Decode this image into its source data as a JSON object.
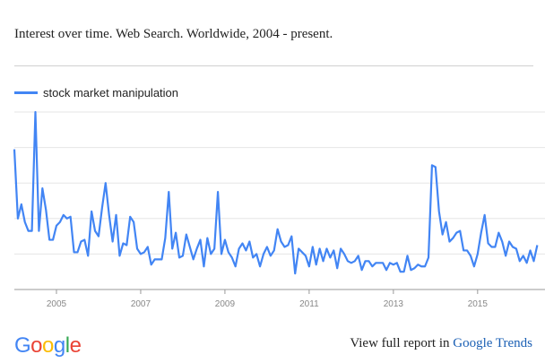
{
  "header": {
    "title": "Interest over time. Web Search. Worldwide, 2004 - present."
  },
  "footer": {
    "logo_text": "Google",
    "logo_letters": [
      "G",
      "o",
      "o",
      "g",
      "l",
      "e"
    ],
    "logo_colors": [
      "#4285f4",
      "#ea4335",
      "#fbbc05",
      "#4285f4",
      "#34a853",
      "#ea4335"
    ],
    "report_prefix": "View full report in",
    "report_link": "Google Trends"
  },
  "colors": {
    "series": "#4285f4",
    "gridline": "#e6e6e6",
    "axis": "#999999",
    "tick_label": "#888888"
  },
  "chart_data": {
    "type": "line",
    "title": "",
    "xlabel": "",
    "ylabel": "",
    "x_start": "2004-01",
    "x_end": "2016-08",
    "xlim": [
      2004.0,
      2016.6
    ],
    "ylim": [
      0,
      100
    ],
    "grid": true,
    "legend_position": "top-left",
    "x_ticks": [
      "2005",
      "2007",
      "2009",
      "2011",
      "2013",
      "2015"
    ],
    "x_tick_values": [
      2005,
      2007,
      2009,
      2011,
      2013,
      2015
    ],
    "series": [
      {
        "name": "stock market manipulation",
        "color": "#4285f4",
        "start_year": 2004,
        "start_month": 1,
        "values": [
          79,
          40,
          48,
          38,
          33,
          33,
          100,
          33,
          57,
          45,
          28,
          28,
          36,
          38,
          42,
          40,
          41,
          21,
          21,
          27,
          28,
          19,
          44,
          33,
          30,
          46,
          60,
          42,
          27,
          42,
          19,
          26,
          25,
          41,
          38,
          23,
          20,
          21,
          24,
          14,
          17,
          17,
          17,
          29,
          55,
          23,
          32,
          18,
          19,
          31,
          24,
          17,
          23,
          28,
          13,
          29,
          20,
          23,
          55,
          20,
          28,
          21,
          18,
          13,
          23,
          26,
          22,
          27,
          18,
          20,
          13,
          20,
          24,
          19,
          22,
          34,
          27,
          24,
          25,
          30,
          9,
          23,
          21,
          19,
          13,
          24,
          14,
          23,
          16,
          23,
          18,
          22,
          12,
          23,
          20,
          16,
          15,
          16,
          19,
          11,
          16,
          16,
          13,
          15,
          15,
          15,
          11,
          15,
          14,
          15,
          10,
          10,
          19,
          11,
          12,
          14,
          13,
          13,
          18,
          70,
          69,
          44,
          31,
          38,
          27,
          29,
          32,
          33,
          22,
          22,
          19,
          13,
          20,
          32,
          42,
          26,
          24,
          24,
          32,
          27,
          19,
          27,
          24,
          23,
          16,
          19,
          15,
          22,
          16,
          25
        ]
      }
    ]
  }
}
